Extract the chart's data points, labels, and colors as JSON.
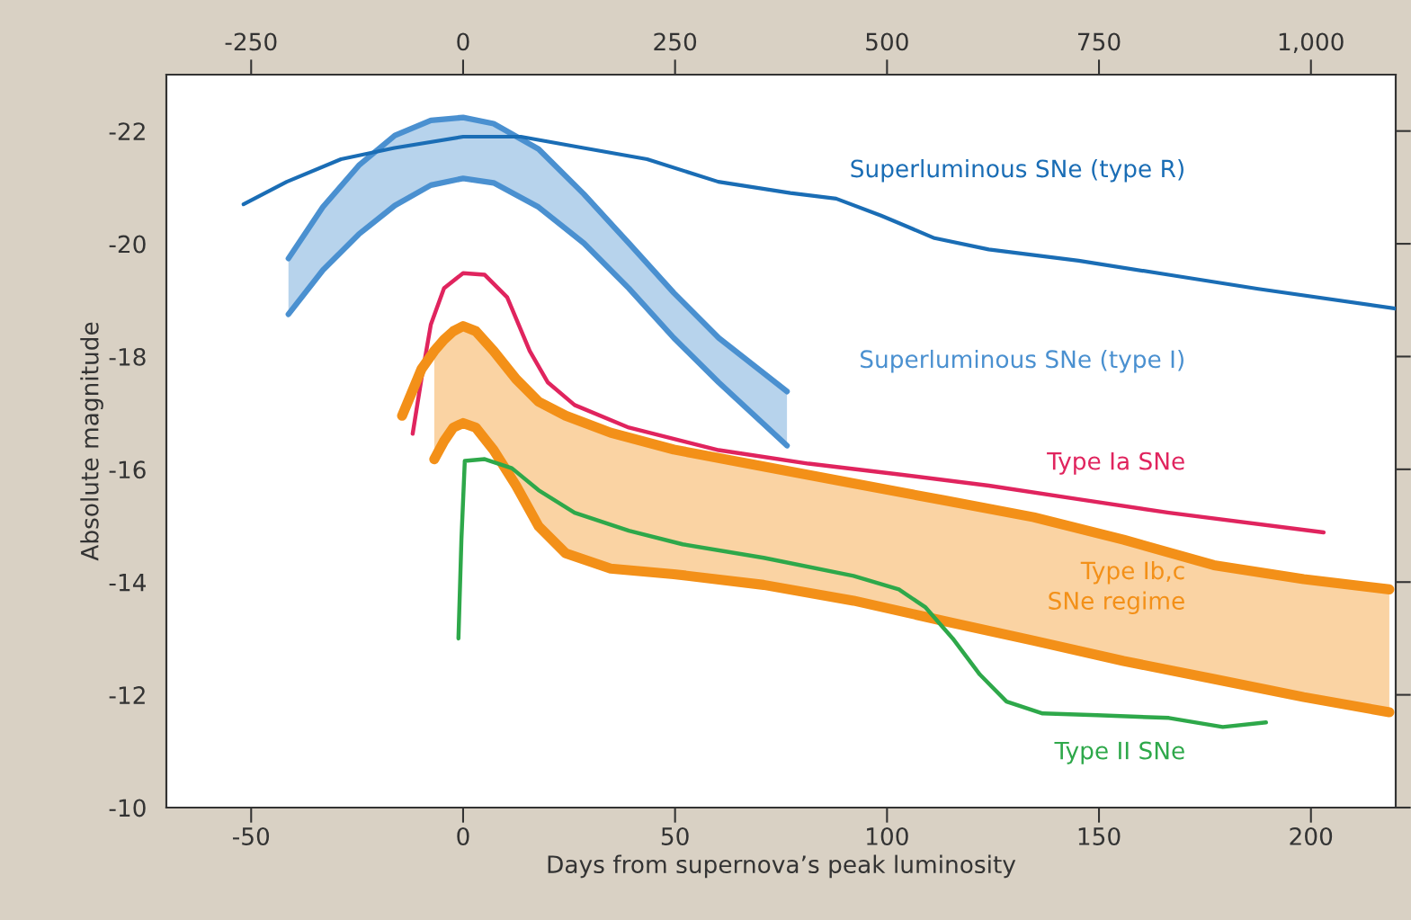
{
  "chart_data": {
    "type": "line",
    "xlabel": "Days from supernova’s peak luminosity",
    "ylabel": "Absolute magnitude",
    "xlim": [
      -70,
      220
    ],
    "xticks": [
      -50,
      0,
      50,
      100,
      150,
      200
    ],
    "x2lim": [
      -350,
      1100
    ],
    "x2ticks": [
      -250,
      0,
      250,
      500,
      750,
      {
        "value": 1000,
        "label": "1,000"
      }
    ],
    "ylim": [
      -10,
      -23
    ],
    "yticks": [
      -22,
      -20,
      -18,
      -16,
      -14,
      -12,
      -10
    ],
    "grid": false,
    "legend": false,
    "marker": "none",
    "line_style": "solid",
    "series": [
      {
        "name": "Superluminous SNe (type R)",
        "color": "#1a6db5",
        "axis": "x2",
        "x": [
          -259,
          -208,
          -144,
          -81,
          0,
          68,
          142,
          217,
          301,
          386,
          440,
          493,
          556,
          620,
          726,
          832,
          938,
          1100
        ],
        "values": [
          -20.7,
          -21.1,
          -21.5,
          -21.7,
          -21.9,
          -21.9,
          -21.7,
          -21.5,
          -21.1,
          -20.9,
          -20.8,
          -20.5,
          -20.1,
          -19.9,
          -19.7,
          -19.45,
          -19.2,
          -18.85
        ]
      },
      {
        "name": "Superluminous SNe (type I)",
        "color": "#4a90d0",
        "upper": [
          -19.74,
          -20.65,
          -21.39,
          -21.92,
          -22.19,
          -22.24,
          -22.13,
          -21.68,
          -20.88,
          -20.01,
          -19.13,
          -18.33,
          -17.38
        ],
        "x": [
          -41.2,
          -33.1,
          -24.6,
          -16.1,
          -7.6,
          0,
          7.2,
          17.8,
          28.5,
          39.1,
          49.7,
          60.3,
          76.4
        ],
        "values": [
          -19.74,
          -20.65,
          -21.39,
          -21.92,
          -22.19,
          -22.24,
          -22.13,
          -21.68,
          -20.88,
          -20.01,
          -19.13,
          -18.33,
          -17.38
        ],
        "lower": [
          -18.75,
          -19.53,
          -20.17,
          -20.68,
          -21.04,
          -21.16,
          -21.08,
          -20.65,
          -20.01,
          -19.21,
          -18.33,
          -17.54,
          -16.42
        ]
      },
      {
        "color": "#4a90d0",
        "x": [
          -41.2,
          -33.1,
          -24.6,
          -16.1,
          -7.6,
          0,
          7.2,
          17.8,
          28.5,
          39.1,
          49.7,
          60.3,
          76.4
        ],
        "values": [
          -18.75,
          -19.53,
          -20.17,
          -20.68,
          -21.04,
          -21.16,
          -21.08,
          -20.65,
          -20.01,
          -19.21,
          -18.33,
          -17.54,
          -16.42
        ]
      },
      {
        "name": "Type Ia SNe",
        "color": "#e0245e",
        "x": [
          -11.9,
          -9.8,
          -7.6,
          -4.5,
          0,
          5.1,
          10.4,
          15.7,
          20,
          26.3,
          39.1,
          60.3,
          81.5,
          102.8,
          124,
          145.2,
          166.5,
          203
        ],
        "values": [
          -16.63,
          -17.62,
          -18.57,
          -19.21,
          -19.48,
          -19.45,
          -19.05,
          -18.1,
          -17.54,
          -17.14,
          -16.74,
          -16.34,
          -16.1,
          -15.91,
          -15.71,
          -15.47,
          -15.23,
          -14.88
        ]
      },
      {
        "name": "Type Ib,c\nSNe regime",
        "color": "#f39018",
        "upper": [
          null,
          null,
          -18.1,
          -18.3,
          -18.45,
          -18.54,
          -18.45,
          -18.1,
          -17.6,
          -17.2,
          -16.95,
          -16.65,
          -16.35,
          -16.05,
          -15.75,
          -15.45,
          -15.15,
          -14.75,
          -14.3,
          -14.05,
          -13.87
        ],
        "x": [
          -14.4,
          -9.8,
          -6.8,
          -4.5,
          -2.3,
          0,
          3,
          7.2,
          12.5,
          17.8,
          24.2,
          34.8,
          49.7,
          70.9,
          92.1,
          113.4,
          134.6,
          155.8,
          177.1,
          198.3,
          218.5
        ],
        "values": [
          -16.95,
          -17.78,
          -18.1,
          -18.3,
          -18.45,
          -18.54,
          -18.45,
          -18.1,
          -17.6,
          -17.2,
          -16.95,
          -16.65,
          -16.35,
          -16.05,
          -15.75,
          -15.45,
          -15.15,
          -14.75,
          -14.3,
          -14.05,
          -13.87
        ],
        "lower": [
          null,
          null,
          -16.18,
          -16.5,
          -16.74,
          -16.82,
          -16.74,
          -16.34,
          -15.71,
          -14.99,
          -14.51,
          -14.24,
          -14.14,
          -13.95,
          -13.67,
          -13.31,
          -12.96,
          -12.6,
          -12.28,
          -11.96,
          -11.69
        ]
      },
      {
        "color": "#f39018",
        "x": [
          -6.8,
          -4.5,
          -2.3,
          0,
          3,
          7.2,
          12.5,
          17.8,
          24.2,
          34.8,
          49.7,
          70.9,
          92.1,
          113.4,
          134.6,
          155.8,
          177.1,
          198.3,
          218.5
        ],
        "values": [
          -16.18,
          -16.5,
          -16.74,
          -16.82,
          -16.74,
          -16.34,
          -15.71,
          -14.99,
          -14.51,
          -14.24,
          -14.14,
          -13.95,
          -13.67,
          -13.31,
          -12.96,
          -12.6,
          -12.28,
          -11.96,
          -11.69
        ]
      },
      {
        "name": "Type II SNe",
        "color": "#2ea84a",
        "x": [
          -1.1,
          -0.4,
          0.4,
          5.1,
          11.5,
          17.8,
          26.3,
          39.1,
          51.8,
          70.9,
          92.1,
          102.8,
          109.1,
          115.5,
          121.9,
          128.2,
          136.7,
          149.5,
          166.5,
          179.2,
          189.4
        ],
        "values": [
          -13.0,
          -14.75,
          -16.15,
          -16.18,
          -16.02,
          -15.63,
          -15.23,
          -14.91,
          -14.67,
          -14.43,
          -14.11,
          -13.87,
          -13.55,
          -13.0,
          -12.36,
          -11.88,
          -11.67,
          -11.64,
          -11.59,
          -11.43,
          -11.51
        ]
      }
    ]
  }
}
